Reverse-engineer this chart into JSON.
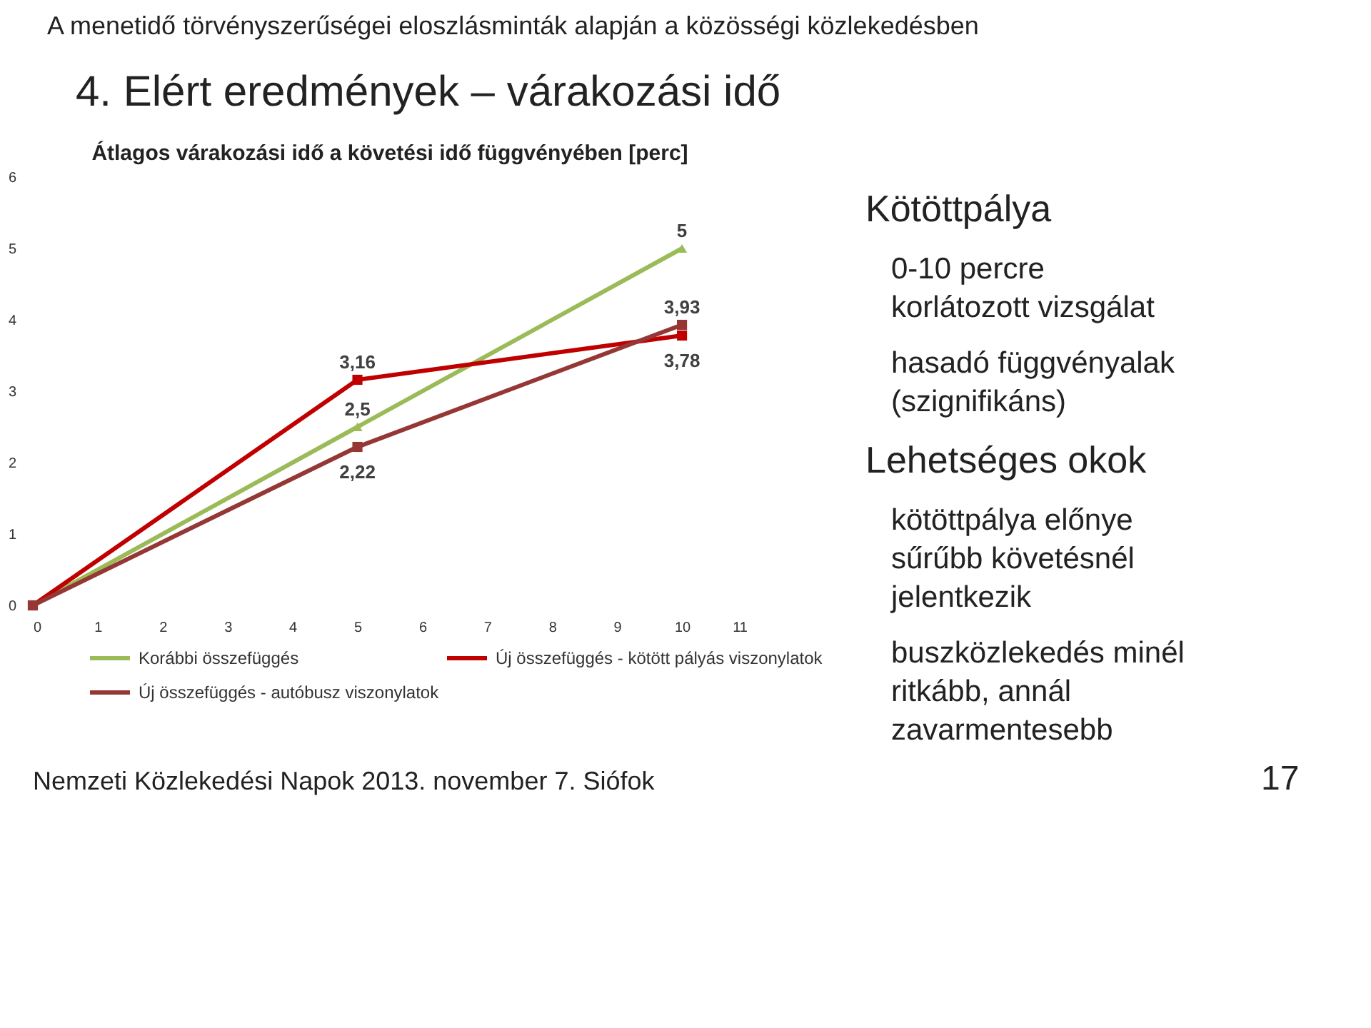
{
  "chart_data": {
    "type": "line",
    "title": "Átlagos várakozási idő a követési idő függvényében [perc]",
    "x": [
      0,
      5,
      10
    ],
    "series": [
      {
        "name": "Korábbi összefüggés",
        "color": "#9bbb59",
        "marker": "triangle",
        "values": [
          0,
          2.5,
          5
        ],
        "value_labels": [
          null,
          "2,5",
          "5"
        ]
      },
      {
        "name": "Új összefüggés - kötött pályás viszonylatok",
        "color": "#c00000",
        "marker": "square",
        "values": [
          0,
          3.16,
          3.78
        ],
        "value_labels": [
          null,
          "3,16",
          "3,78"
        ]
      },
      {
        "name": "Új összefüggés - autóbusz viszonylatok",
        "color": "#953735",
        "marker": "square",
        "values": [
          0,
          2.22,
          3.93
        ],
        "value_labels": [
          null,
          "2,22",
          "3,93"
        ]
      }
    ],
    "xlim": [
      0,
      11
    ],
    "xticks": [
      0,
      1,
      2,
      3,
      4,
      5,
      6,
      7,
      8,
      9,
      10,
      11
    ],
    "ylim": [
      0,
      6
    ],
    "yticks": [
      0,
      1,
      2,
      3,
      4,
      5,
      6
    ],
    "grid": false,
    "legend": "bottom",
    "annotations": [
      "A menetidő törvényszerűségei eloszlásminták alapján a közösségi közlekedésben",
      "4. Elért eredmények – várakozási idő",
      "Kötöttpálya",
      "0-10 percre korlátozott vizsgálat",
      "hasadó függvényalak (szignifikáns)",
      "Lehetséges okok",
      "kötöttpálya előnye sűrűbb követésnél jelentkezik",
      "buszközlekedés minél ritkább, annál zavarmentesebb",
      "Nemzeti Közlekedési Napok 2013. november 7. Siófok",
      "17"
    ]
  }
}
